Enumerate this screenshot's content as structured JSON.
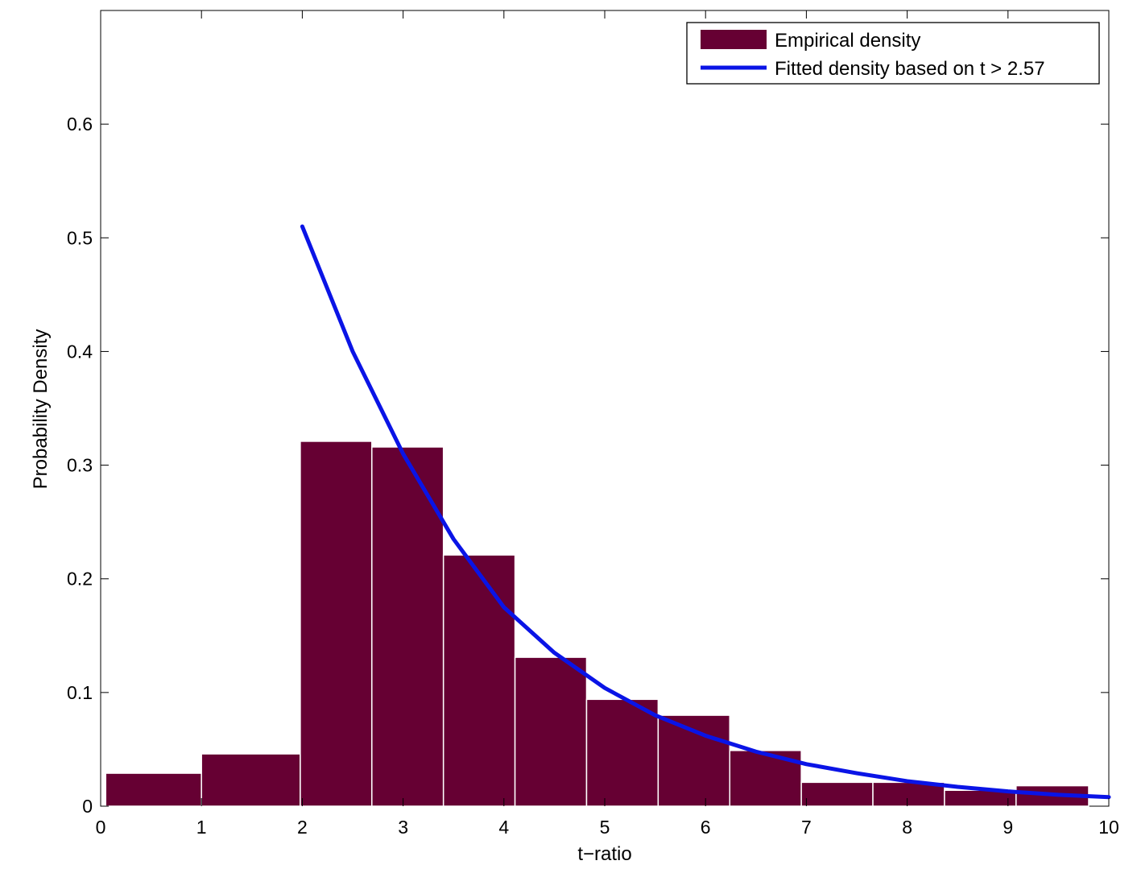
{
  "chart_data": {
    "type": "bar",
    "xlabel": "t−ratio",
    "ylabel": "Probability Density",
    "xlim": [
      0,
      10
    ],
    "ylim": [
      0,
      0.7
    ],
    "x_ticks": [
      "0",
      "1",
      "2",
      "3",
      "4",
      "5",
      "6",
      "7",
      "8",
      "9",
      "10"
    ],
    "y_ticks": [
      "0",
      "0.1",
      "0.2",
      "0.3",
      "0.4",
      "0.5",
      "0.6"
    ],
    "grid": false,
    "legend_position": "top-right",
    "series": [
      {
        "name": "Empirical density",
        "kind": "histogram",
        "color": "#660033",
        "bins": [
          {
            "x0": 0.05,
            "x1": 1.0,
            "value": 0.029
          },
          {
            "x0": 1.0,
            "x1": 1.98,
            "value": 0.046
          },
          {
            "x0": 1.98,
            "x1": 2.69,
            "value": 0.321
          },
          {
            "x0": 2.69,
            "x1": 3.4,
            "value": 0.316
          },
          {
            "x0": 3.4,
            "x1": 4.11,
            "value": 0.221
          },
          {
            "x0": 4.11,
            "x1": 4.82,
            "value": 0.131
          },
          {
            "x0": 4.82,
            "x1": 5.53,
            "value": 0.094
          },
          {
            "x0": 5.53,
            "x1": 6.24,
            "value": 0.08
          },
          {
            "x0": 6.24,
            "x1": 6.95,
            "value": 0.049
          },
          {
            "x0": 6.95,
            "x1": 7.66,
            "value": 0.021
          },
          {
            "x0": 7.66,
            "x1": 8.37,
            "value": 0.021
          },
          {
            "x0": 8.37,
            "x1": 9.08,
            "value": 0.014
          },
          {
            "x0": 9.08,
            "x1": 9.8,
            "value": 0.018
          }
        ]
      },
      {
        "name": "Fitted density based on t > 2.57",
        "kind": "line",
        "color": "#0a14e6",
        "x": [
          2.0,
          2.5,
          3.0,
          3.5,
          4.0,
          4.5,
          5.0,
          5.5,
          6.0,
          6.5,
          7.0,
          7.5,
          8.0,
          8.5,
          9.0,
          9.5,
          10.0
        ],
        "y": [
          0.51,
          0.4,
          0.31,
          0.235,
          0.175,
          0.135,
          0.104,
          0.08,
          0.062,
          0.048,
          0.037,
          0.029,
          0.022,
          0.017,
          0.013,
          0.01,
          0.008
        ]
      }
    ]
  }
}
